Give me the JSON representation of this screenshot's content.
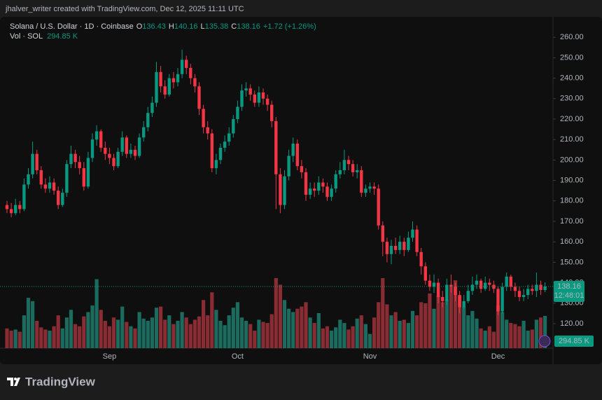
{
  "chart_data": {
    "type": "candlestick",
    "attribution": "jhalver_writer created with TradingView.com, Dec 12, 2025 11:11 UTC",
    "title": "Solana / U.S. Dollar · 1D · Coinbase",
    "legend_labels": {
      "open": "O",
      "high": "H",
      "low": "L",
      "close": "C"
    },
    "change_label": "+1.72 (+1.26%)",
    "countdown": "12:48:01",
    "brand": "TradingView",
    "up_color": "#089981",
    "down_color": "#f23645",
    "up_volume_color": "#1b6b5e",
    "down_volume_color": "#8a2c33",
    "grid": false,
    "ylim": [
      108,
      270
    ],
    "yticks": [
      {
        "value": 120,
        "label": "120.00"
      },
      {
        "value": 130,
        "label": "130.00"
      },
      {
        "value": 140,
        "label": "140.00"
      },
      {
        "value": 150,
        "label": "150.00"
      },
      {
        "value": 160,
        "label": "160.00"
      },
      {
        "value": 170,
        "label": "170.00"
      },
      {
        "value": 180,
        "label": "180.00"
      },
      {
        "value": 190,
        "label": "190.00"
      },
      {
        "value": 200,
        "label": "200.00"
      },
      {
        "value": 210,
        "label": "210.00"
      },
      {
        "value": 220,
        "label": "220.00"
      },
      {
        "value": 230,
        "label": "230.00"
      },
      {
        "value": 240,
        "label": "240.00"
      },
      {
        "value": 250,
        "label": "250.00"
      },
      {
        "value": 260,
        "label": "260.00"
      }
    ],
    "categories": [
      null,
      null,
      null,
      null,
      null,
      null,
      null,
      null,
      null,
      null,
      null,
      null,
      null,
      null,
      null,
      null,
      null,
      null,
      null,
      null,
      null,
      null,
      null,
      null,
      "Sep",
      null,
      null,
      null,
      null,
      null,
      null,
      null,
      null,
      null,
      null,
      null,
      null,
      null,
      null,
      null,
      null,
      null,
      null,
      null,
      null,
      null,
      null,
      null,
      null,
      null,
      null,
      null,
      null,
      null,
      "Oct",
      null,
      null,
      null,
      null,
      null,
      null,
      null,
      null,
      null,
      null,
      null,
      null,
      null,
      null,
      null,
      null,
      null,
      null,
      null,
      null,
      null,
      null,
      null,
      null,
      null,
      null,
      null,
      null,
      null,
      null,
      "Nov",
      null,
      null,
      null,
      null,
      null,
      null,
      null,
      null,
      null,
      null,
      null,
      null,
      null,
      null,
      null,
      null,
      null,
      null,
      null,
      null,
      null,
      null,
      null,
      null,
      null,
      null,
      null,
      null,
      null,
      "Dec",
      null,
      null,
      null,
      null,
      null,
      null,
      null,
      null,
      null,
      null,
      null
    ],
    "open": [
      178,
      176,
      174,
      178,
      176,
      188,
      193,
      203,
      195,
      188,
      186,
      189,
      185,
      178,
      184,
      198,
      203,
      199,
      196,
      187,
      201,
      210,
      214,
      206,
      203,
      201,
      197,
      204,
      211,
      203,
      205,
      202,
      211,
      216,
      223,
      228,
      243,
      236,
      232,
      240,
      238,
      242,
      249,
      245,
      240,
      236,
      225,
      216,
      213,
      196,
      200,
      206,
      209,
      213,
      220,
      226,
      234,
      235,
      232,
      228,
      233,
      230,
      227,
      219,
      193,
      178,
      192,
      202,
      208,
      197,
      194,
      183,
      186,
      185,
      189,
      187,
      182,
      186,
      193,
      195,
      200,
      198,
      194,
      195,
      184,
      186,
      187,
      186,
      168,
      160,
      154,
      158,
      156,
      160,
      156,
      162,
      166,
      155,
      148,
      141,
      138,
      140,
      133,
      131,
      139,
      138,
      134,
      128,
      131,
      136,
      139,
      141,
      137,
      140,
      139,
      137,
      126,
      138,
      143,
      138,
      136,
      133,
      134,
      137,
      136,
      139,
      136.43
    ],
    "high": [
      180,
      179,
      181,
      180,
      191,
      196,
      209,
      205,
      197,
      191,
      192,
      191,
      187,
      186,
      200,
      207,
      205,
      202,
      199,
      204,
      213,
      217,
      215,
      209,
      206,
      203,
      206,
      214,
      212,
      208,
      207,
      213,
      219,
      226,
      231,
      248,
      246,
      239,
      242,
      243,
      245,
      254,
      251,
      247,
      242,
      238,
      227,
      219,
      215,
      203,
      208,
      212,
      216,
      222,
      229,
      237,
      238,
      237,
      234,
      236,
      235,
      232,
      229,
      221,
      196,
      195,
      205,
      211,
      210,
      200,
      196,
      189,
      189,
      192,
      191,
      189,
      188,
      195,
      199,
      205,
      202,
      200,
      198,
      197,
      188,
      189,
      189,
      188,
      170,
      162,
      161,
      162,
      163,
      162,
      165,
      170,
      168,
      157,
      150,
      144,
      144,
      142,
      136,
      142,
      144,
      140,
      136,
      134,
      139,
      143,
      144,
      142,
      143,
      142,
      141,
      138,
      140,
      145,
      144,
      140,
      138,
      137,
      139,
      139,
      145,
      141,
      140.16
    ],
    "low": [
      174,
      172,
      173,
      174,
      175,
      186,
      191,
      193,
      186,
      184,
      184,
      183,
      176,
      177,
      182,
      196,
      196,
      193,
      185,
      186,
      199,
      207,
      204,
      200,
      198,
      195,
      196,
      202,
      201,
      201,
      200,
      201,
      209,
      214,
      221,
      226,
      233,
      230,
      231,
      235,
      236,
      240,
      242,
      237,
      233,
      222,
      213,
      210,
      194,
      193,
      198,
      204,
      207,
      211,
      218,
      224,
      231,
      229,
      226,
      226,
      227,
      224,
      216,
      176,
      174,
      176,
      190,
      199,
      195,
      191,
      180,
      181,
      182,
      183,
      184,
      180,
      180,
      184,
      191,
      193,
      195,
      192,
      191,
      182,
      182,
      184,
      183,
      166,
      153,
      150,
      149,
      154,
      154,
      153,
      155,
      160,
      153,
      144,
      139,
      136,
      135,
      130,
      128,
      129,
      135,
      131,
      125,
      127,
      130,
      134,
      137,
      135,
      136,
      136,
      135,
      124,
      125,
      136,
      136,
      133,
      131,
      131,
      132,
      134,
      133,
      134,
      135.38
    ],
    "close": [
      176,
      174,
      178,
      176,
      188,
      193,
      203,
      195,
      188,
      186,
      189,
      185,
      178,
      184,
      198,
      203,
      199,
      196,
      187,
      201,
      210,
      214,
      206,
      203,
      201,
      197,
      204,
      211,
      203,
      205,
      202,
      211,
      216,
      223,
      228,
      243,
      236,
      232,
      240,
      238,
      242,
      249,
      245,
      240,
      236,
      225,
      216,
      213,
      196,
      200,
      206,
      209,
      213,
      220,
      226,
      234,
      235,
      232,
      228,
      233,
      230,
      227,
      219,
      193,
      178,
      192,
      202,
      208,
      197,
      194,
      183,
      186,
      185,
      189,
      187,
      182,
      186,
      193,
      195,
      200,
      198,
      194,
      195,
      184,
      186,
      187,
      186,
      168,
      160,
      154,
      158,
      156,
      160,
      156,
      162,
      166,
      155,
      148,
      141,
      138,
      140,
      133,
      131,
      139,
      138,
      134,
      128,
      131,
      136,
      139,
      141,
      137,
      140,
      139,
      137,
      126,
      138,
      143,
      138,
      136,
      133,
      134,
      137,
      136,
      139,
      136.43,
      138.16
    ],
    "volume": {
      "name": "Vol · SOL",
      "last_label": "294.85 K",
      "values": [
        180,
        160,
        170,
        150,
        300,
        460,
        430,
        250,
        190,
        170,
        160,
        200,
        300,
        180,
        280,
        350,
        220,
        200,
        290,
        330,
        390,
        630,
        350,
        250,
        200,
        280,
        260,
        380,
        240,
        200,
        180,
        330,
        270,
        250,
        280,
        370,
        380,
        260,
        300,
        220,
        250,
        330,
        280,
        220,
        260,
        290,
        440,
        300,
        510,
        350,
        250,
        210,
        300,
        370,
        420,
        280,
        250,
        220,
        160,
        260,
        240,
        230,
        310,
        640,
        580,
        440,
        360,
        330,
        360,
        380,
        420,
        280,
        230,
        320,
        180,
        200,
        160,
        190,
        260,
        230,
        170,
        200,
        270,
        300,
        220,
        130,
        280,
        420,
        640,
        400,
        300,
        330,
        250,
        260,
        230,
        340,
        300,
        420,
        410,
        500,
        360,
        480,
        420,
        440,
        560,
        620,
        480,
        380,
        300,
        340,
        270,
        180,
        160,
        200,
        150,
        390,
        330,
        260,
        230,
        220,
        200,
        250,
        160,
        170,
        260,
        280,
        294.85
      ]
    }
  }
}
